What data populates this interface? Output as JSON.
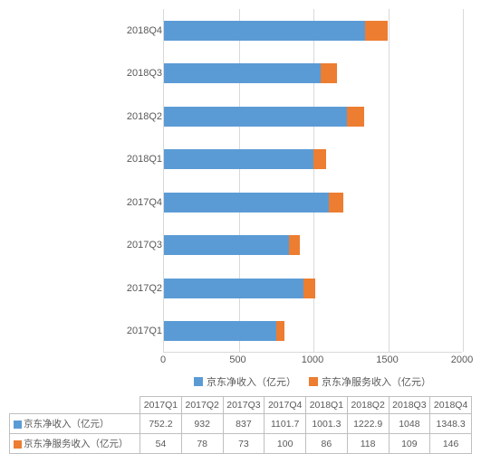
{
  "chart": {
    "type": "bar",
    "orientation": "horizontal",
    "stacked": true,
    "background_color": "#ffffff",
    "grid_color": "#d9d9d9",
    "text_color": "#595959",
    "label_fontsize": 11,
    "xlim": [
      0,
      2000
    ],
    "xtick_step": 500,
    "xticks": [
      "0",
      "500",
      "1000",
      "1500",
      "2000"
    ],
    "categories": [
      "2017Q1",
      "2017Q2",
      "2017Q3",
      "2017Q4",
      "2018Q1",
      "2018Q2",
      "2018Q3",
      "2018Q4"
    ],
    "series": [
      {
        "name": "京东净收入（亿元）",
        "color": "#5b9bd5",
        "values": [
          752.2,
          932,
          837,
          1101.7,
          1001.3,
          1222.9,
          1048,
          1348.3
        ]
      },
      {
        "name": "京东净服务收入（亿元）",
        "color": "#ed7d31",
        "values": [
          54,
          78,
          73,
          100,
          86,
          118,
          109,
          146
        ]
      }
    ]
  },
  "table": {
    "columns_header_fontsize": 10.5,
    "border_color": "#bfbfbf",
    "columns": [
      "2017Q1",
      "2017Q2",
      "2017Q3",
      "2017Q4",
      "2018Q1",
      "2018Q2",
      "2018Q3",
      "2018Q4"
    ],
    "rows": [
      {
        "label": "京东净收入（亿元）",
        "swatch": "#5b9bd5",
        "cells": [
          "752.2",
          "932",
          "837",
          "1101.7",
          "1001.3",
          "1222.9",
          "1048",
          "1348.3"
        ]
      },
      {
        "label": "京东净服务收入（亿元）",
        "swatch": "#ed7d31",
        "cells": [
          "54",
          "78",
          "73",
          "100",
          "86",
          "118",
          "109",
          "146"
        ]
      }
    ]
  }
}
